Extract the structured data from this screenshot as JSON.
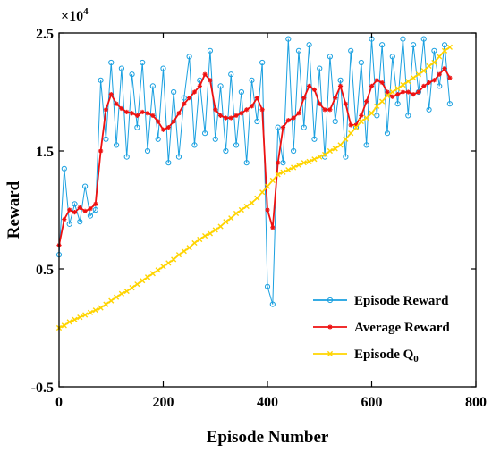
{
  "chart_data": {
    "type": "line",
    "xlabel": "Episode Number",
    "ylabel": "Reward",
    "y_multiplier": "×10",
    "y_multiplier_exp": "4",
    "xlim": [
      0,
      800
    ],
    "ylim": [
      -0.5,
      2.5
    ],
    "xticks": [
      0,
      200,
      400,
      600,
      800
    ],
    "yticks": [
      -0.5,
      0.5,
      1.5,
      2.5
    ],
    "xtick_labels": [
      "0",
      "200",
      "400",
      "600",
      "800"
    ],
    "ytick_labels": [
      "-0.5",
      "0.5",
      "1.5",
      "2.5"
    ],
    "grid": false,
    "legend_position": "lower-right",
    "series": [
      {
        "name": "Episode Reward",
        "color": "#1aa0e0",
        "marker": "circle",
        "x": [
          0,
          10,
          20,
          30,
          40,
          50,
          60,
          70,
          80,
          90,
          100,
          110,
          120,
          130,
          140,
          150,
          160,
          170,
          180,
          190,
          200,
          210,
          220,
          230,
          240,
          250,
          260,
          270,
          280,
          290,
          300,
          310,
          320,
          330,
          340,
          350,
          360,
          370,
          380,
          390,
          400,
          410,
          420,
          430,
          440,
          450,
          460,
          470,
          480,
          490,
          500,
          510,
          520,
          530,
          540,
          550,
          560,
          570,
          580,
          590,
          600,
          610,
          620,
          630,
          640,
          650,
          660,
          670,
          680,
          690,
          700,
          710,
          720,
          730,
          740,
          750
        ],
        "values": [
          0.62,
          1.35,
          0.88,
          1.05,
          0.9,
          1.2,
          0.95,
          1.0,
          2.1,
          1.6,
          2.25,
          1.55,
          2.2,
          1.45,
          2.15,
          1.7,
          2.25,
          1.5,
          2.05,
          1.6,
          2.2,
          1.4,
          2.0,
          1.45,
          1.95,
          2.3,
          1.55,
          2.1,
          1.65,
          2.35,
          1.6,
          2.05,
          1.5,
          2.15,
          1.55,
          2.0,
          1.4,
          2.1,
          1.75,
          2.25,
          0.35,
          0.2,
          1.7,
          1.4,
          2.45,
          1.5,
          2.35,
          1.7,
          2.4,
          1.6,
          2.2,
          1.45,
          2.3,
          1.75,
          2.1,
          1.45,
          2.35,
          1.7,
          2.25,
          1.55,
          2.45,
          1.8,
          2.4,
          1.65,
          2.3,
          1.9,
          2.45,
          1.8,
          2.4,
          2.0,
          2.45,
          1.85,
          2.35,
          2.05,
          2.4,
          1.9
        ]
      },
      {
        "name": "Average Reward",
        "color": "#ee1111",
        "marker": "star",
        "x": [
          0,
          10,
          20,
          30,
          40,
          50,
          60,
          70,
          80,
          90,
          100,
          110,
          120,
          130,
          140,
          150,
          160,
          170,
          180,
          190,
          200,
          210,
          220,
          230,
          240,
          250,
          260,
          270,
          280,
          290,
          300,
          310,
          320,
          330,
          340,
          350,
          360,
          370,
          380,
          390,
          400,
          410,
          420,
          430,
          440,
          450,
          460,
          470,
          480,
          490,
          500,
          510,
          520,
          530,
          540,
          550,
          560,
          570,
          580,
          590,
          600,
          610,
          620,
          630,
          640,
          650,
          660,
          670,
          680,
          690,
          700,
          710,
          720,
          730,
          740,
          750
        ],
        "values": [
          0.7,
          0.92,
          1.0,
          0.98,
          1.02,
          0.99,
          1.01,
          1.05,
          1.5,
          1.85,
          1.98,
          1.9,
          1.86,
          1.83,
          1.82,
          1.8,
          1.83,
          1.82,
          1.8,
          1.75,
          1.68,
          1.7,
          1.75,
          1.82,
          1.9,
          1.95,
          2.0,
          2.05,
          2.15,
          2.1,
          1.85,
          1.8,
          1.78,
          1.78,
          1.8,
          1.82,
          1.85,
          1.88,
          1.95,
          1.85,
          1.0,
          0.85,
          1.4,
          1.7,
          1.76,
          1.78,
          1.82,
          1.95,
          2.05,
          2.02,
          1.9,
          1.85,
          1.85,
          1.95,
          2.05,
          1.9,
          1.72,
          1.72,
          1.8,
          1.92,
          2.05,
          2.1,
          2.08,
          2.0,
          1.96,
          1.98,
          2.0,
          2.0,
          1.98,
          2.0,
          2.05,
          2.08,
          2.1,
          2.15,
          2.2,
          2.12
        ]
      },
      {
        "name": "Episode Q",
        "subscript": "0",
        "color": "#ffd400",
        "marker": "x",
        "x": [
          0,
          10,
          20,
          30,
          40,
          50,
          60,
          70,
          80,
          90,
          100,
          110,
          120,
          130,
          140,
          150,
          160,
          170,
          180,
          190,
          200,
          210,
          220,
          230,
          240,
          250,
          260,
          270,
          280,
          290,
          300,
          310,
          320,
          330,
          340,
          350,
          360,
          370,
          380,
          390,
          400,
          410,
          420,
          430,
          440,
          450,
          460,
          470,
          480,
          490,
          500,
          510,
          520,
          530,
          540,
          550,
          560,
          570,
          580,
          590,
          600,
          610,
          620,
          630,
          640,
          650,
          660,
          670,
          680,
          690,
          700,
          710,
          720,
          730,
          740,
          750
        ],
        "values": [
          0.0,
          0.02,
          0.05,
          0.07,
          0.09,
          0.11,
          0.13,
          0.15,
          0.17,
          0.2,
          0.23,
          0.26,
          0.29,
          0.31,
          0.34,
          0.37,
          0.4,
          0.43,
          0.46,
          0.49,
          0.52,
          0.55,
          0.58,
          0.62,
          0.65,
          0.68,
          0.72,
          0.75,
          0.78,
          0.8,
          0.83,
          0.86,
          0.9,
          0.93,
          0.97,
          1.0,
          1.03,
          1.06,
          1.1,
          1.15,
          1.2,
          1.25,
          1.3,
          1.32,
          1.34,
          1.36,
          1.38,
          1.4,
          1.41,
          1.43,
          1.45,
          1.47,
          1.5,
          1.52,
          1.55,
          1.6,
          1.65,
          1.7,
          1.75,
          1.78,
          1.82,
          1.88,
          1.92,
          1.97,
          2.0,
          2.03,
          2.06,
          2.09,
          2.12,
          2.15,
          2.18,
          2.22,
          2.25,
          2.3,
          2.35,
          2.38
        ]
      }
    ]
  }
}
